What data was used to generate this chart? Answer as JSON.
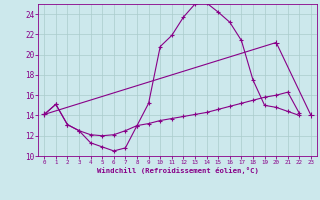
{
  "background_color": "#cce8ec",
  "grid_color": "#aacccc",
  "line_color": "#880088",
  "xlabel": "Windchill (Refroidissement éolien,°C)",
  "xlim": [
    -0.5,
    23.5
  ],
  "ylim": [
    10,
    25
  ],
  "yticks": [
    10,
    12,
    14,
    16,
    18,
    20,
    22,
    24
  ],
  "xticks": [
    0,
    1,
    2,
    3,
    4,
    5,
    6,
    7,
    8,
    9,
    10,
    11,
    12,
    13,
    14,
    15,
    16,
    17,
    18,
    19,
    20,
    21,
    22,
    23
  ],
  "line1_y": [
    14.1,
    15.1,
    13.1,
    12.5,
    11.3,
    10.9,
    10.5,
    10.8,
    13.0,
    15.2,
    20.8,
    21.9,
    23.7,
    25.0,
    25.1,
    24.2,
    23.2,
    21.4,
    17.5,
    15.0,
    14.8,
    14.4,
    14.0
  ],
  "line2_y": [
    14.1,
    15.1,
    13.1,
    12.5,
    12.1,
    12.0,
    12.1,
    12.5,
    13.0,
    13.2,
    13.5,
    13.7,
    13.9,
    14.1,
    14.3,
    14.6,
    14.9,
    15.2,
    15.5,
    15.8,
    16.0,
    16.3,
    14.2
  ],
  "line3_x": [
    0,
    20,
    23
  ],
  "line3_y": [
    14.1,
    21.2,
    14.0
  ]
}
